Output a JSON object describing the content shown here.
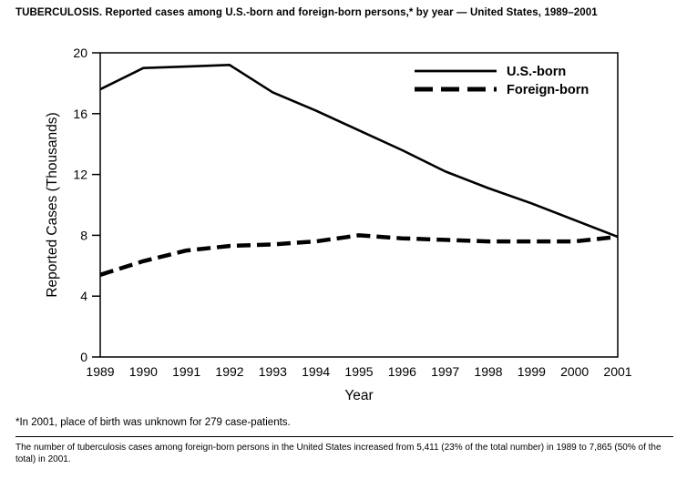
{
  "title": "TUBERCULOSIS. Reported cases among U.S.-born and foreign-born persons,* by year — United States, 1989–2001",
  "chart_data": {
    "type": "line",
    "x": [
      1989,
      1990,
      1991,
      1992,
      1993,
      1994,
      1995,
      1996,
      1997,
      1998,
      1999,
      2000,
      2001
    ],
    "series": [
      {
        "name": "U.S.-born",
        "style": "solid",
        "values": [
          17.6,
          19.0,
          19.1,
          19.2,
          17.4,
          16.2,
          14.9,
          13.6,
          12.2,
          11.1,
          10.1,
          9.0,
          7.9
        ]
      },
      {
        "name": "Foreign-born",
        "style": "dashed",
        "values": [
          5.4,
          6.3,
          7.0,
          7.3,
          7.4,
          7.6,
          8.0,
          7.8,
          7.7,
          7.6,
          7.6,
          7.6,
          7.9
        ]
      }
    ],
    "xlabel": "Year",
    "ylabel": "Reported Cases (Thousands)",
    "ylim": [
      0,
      20
    ],
    "yticks": [
      0,
      4,
      8,
      12,
      16,
      20
    ],
    "legend_position": "top-right",
    "grid": false,
    "line_color": "#000000",
    "background": "#ffffff"
  },
  "footnotes": [
    "*In 2001, place of birth was unknown for 279 case-patients.",
    "The number of tuberculosis cases among foreign-born persons in the United States increased from 5,411 (23% of the total number) in 1989 to 7,865 (50% of the total) in 2001."
  ]
}
